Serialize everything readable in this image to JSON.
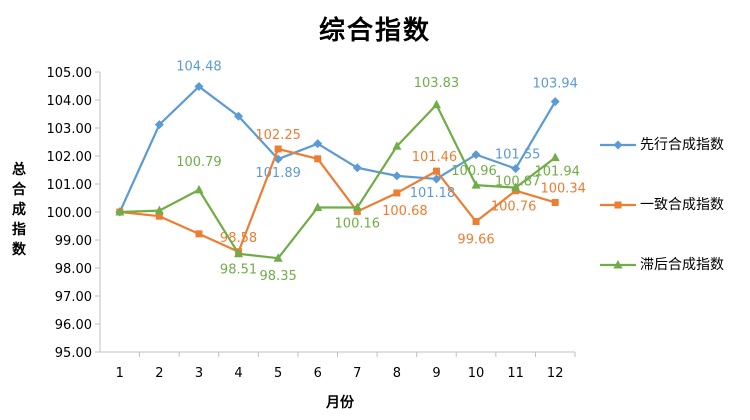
{
  "chart_data": {
    "type": "line",
    "title": "综合指数",
    "xlabel": "月份",
    "ylabel": "总合成指数",
    "categories": [
      "1",
      "2",
      "3",
      "4",
      "5",
      "6",
      "7",
      "8",
      "9",
      "10",
      "11",
      "12"
    ],
    "ylim": [
      95.0,
      105.0
    ],
    "yticks": [
      "95.00",
      "96.00",
      "97.00",
      "98.00",
      "99.00",
      "100.00",
      "101.00",
      "102.00",
      "103.00",
      "104.00",
      "105.00"
    ],
    "grid": false,
    "legend_position": "right",
    "series": [
      {
        "name": "先行合成指数",
        "color": "#5B9BD5",
        "marker": "diamond",
        "values": [
          100.0,
          103.12,
          104.48,
          103.42,
          101.89,
          102.44,
          101.58,
          101.29,
          101.18,
          102.05,
          101.55,
          103.94
        ],
        "labels": {
          "3": "104.48",
          "5": "101.89",
          "9": "101.18",
          "11": "101.55",
          "12": "103.94"
        }
      },
      {
        "name": "一致合成指数",
        "color": "#ED7D31",
        "marker": "square",
        "values": [
          100.0,
          99.85,
          99.22,
          98.58,
          102.25,
          101.9,
          100.02,
          100.68,
          101.46,
          99.66,
          100.76,
          100.34
        ],
        "labels": {
          "4": "98.58",
          "5": "102.25",
          "8": "100.68",
          "9": "101.46",
          "10": "99.66",
          "11": "100.76",
          "12": "100.34"
        }
      },
      {
        "name": "滞后合成指数",
        "color": "#70AD47",
        "marker": "triangle",
        "values": [
          100.0,
          100.05,
          100.79,
          98.51,
          98.35,
          100.16,
          100.16,
          102.35,
          103.83,
          100.96,
          100.87,
          101.94
        ],
        "labels": {
          "3": "100.79",
          "4": "98.51",
          "5": "98.35",
          "7": "100.16",
          "9": "103.83",
          "10": "100.96",
          "11": "100.87",
          "12": "101.94"
        }
      }
    ]
  }
}
